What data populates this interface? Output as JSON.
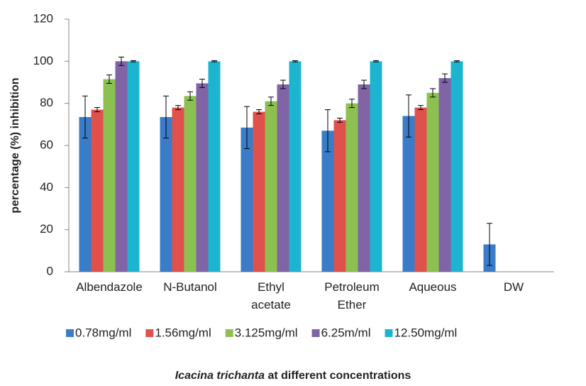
{
  "chart_data": {
    "type": "bar",
    "ylabel": "percentage (%) inhibition",
    "xlabel_species": "Icacina trichanta",
    "xlabel": "at different concentrations",
    "categories": [
      "Albendazole",
      "N-Butanol",
      "Ethyl acetate",
      "Petroleum Ether",
      "Aqueous",
      "DW"
    ],
    "series": [
      {
        "name": "0.78mg/ml",
        "color": "#3a7cc8",
        "values": [
          73.5,
          73.5,
          68.5,
          67,
          74,
          13
        ],
        "errors": [
          10,
          10,
          10,
          10,
          10,
          10
        ]
      },
      {
        "name": "1.56mg/ml",
        "color": "#e0514c",
        "values": [
          77,
          78,
          76,
          72,
          78,
          null
        ],
        "errors": [
          1,
          1,
          1,
          1,
          1,
          null
        ]
      },
      {
        "name": "3.125mg/ml",
        "color": "#8cc152",
        "values": [
          91.5,
          83.5,
          81,
          80,
          85,
          null
        ],
        "errors": [
          2,
          2,
          2,
          2,
          2,
          null
        ]
      },
      {
        "name": "6.25m/ml",
        "color": "#8064a6",
        "values": [
          100,
          89.5,
          89,
          89,
          92,
          null
        ],
        "errors": [
          2,
          2,
          2,
          2,
          2,
          null
        ]
      },
      {
        "name": "12.50mg/ml",
        "color": "#1db4cf",
        "values": [
          100,
          100,
          100,
          100,
          100,
          null
        ],
        "errors": [
          0.3,
          0.3,
          0.3,
          0.3,
          0.3,
          null
        ]
      }
    ],
    "ylim": [
      0,
      120
    ],
    "yticks": [
      0,
      20,
      40,
      60,
      80,
      100,
      120
    ],
    "grid": false,
    "legend": "bottom"
  }
}
